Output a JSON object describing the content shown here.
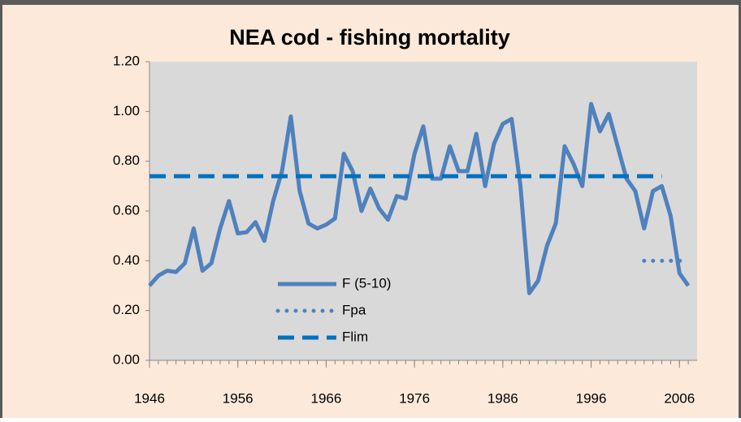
{
  "chart_data": {
    "type": "line",
    "title": "NEA cod - fishing mortality",
    "series": [
      {
        "name": "F (5-10)",
        "color": "#4f81bd",
        "style": "solid",
        "x": [
          1946,
          1947,
          1948,
          1949,
          1950,
          1951,
          1952,
          1953,
          1954,
          1955,
          1956,
          1957,
          1958,
          1959,
          1960,
          1961,
          1962,
          1963,
          1964,
          1965,
          1966,
          1967,
          1968,
          1969,
          1970,
          1971,
          1972,
          1973,
          1974,
          1975,
          1976,
          1977,
          1978,
          1979,
          1980,
          1981,
          1982,
          1983,
          1984,
          1985,
          1986,
          1987,
          1988,
          1989,
          1990,
          1991,
          1992,
          1993,
          1994,
          1995,
          1996,
          1997,
          1998,
          1999,
          2000,
          2001,
          2002,
          2003,
          2004,
          2005,
          2006,
          2007
        ],
        "values": [
          0.3,
          0.34,
          0.36,
          0.355,
          0.39,
          0.53,
          0.36,
          0.39,
          0.53,
          0.64,
          0.51,
          0.515,
          0.555,
          0.48,
          0.64,
          0.76,
          0.98,
          0.68,
          0.55,
          0.53,
          0.545,
          0.57,
          0.83,
          0.76,
          0.6,
          0.69,
          0.61,
          0.565,
          0.66,
          0.65,
          0.83,
          0.94,
          0.73,
          0.73,
          0.86,
          0.76,
          0.76,
          0.91,
          0.7,
          0.87,
          0.95,
          0.97,
          0.7,
          0.27,
          0.32,
          0.46,
          0.55,
          0.86,
          0.79,
          0.7,
          1.03,
          0.92,
          0.99,
          0.86,
          0.73,
          0.68,
          0.53,
          0.68,
          0.7,
          0.58,
          0.35,
          0.3
        ]
      },
      {
        "name": "Fpa",
        "color": "#4f81bd",
        "style": "dotted",
        "x": [
          2002,
          2007
        ],
        "values": [
          0.4,
          0.4
        ]
      },
      {
        "name": "Flim",
        "color": "#0070c0",
        "style": "dashed",
        "x": [
          1946,
          2004
        ],
        "values": [
          0.74,
          0.74
        ]
      }
    ],
    "xlim": [
      1946,
      2008
    ],
    "xticks": [
      1946,
      1956,
      1966,
      1976,
      1986,
      1996,
      2006
    ],
    "ylim": [
      0,
      1.2
    ],
    "yticks": [
      {
        "value": 0,
        "label": "0.00"
      },
      {
        "value": 0.2,
        "label": "0.20"
      },
      {
        "value": 0.4,
        "label": "0.40"
      },
      {
        "value": 0.6,
        "label": "0.60"
      },
      {
        "value": 0.8,
        "label": "0.80"
      },
      {
        "value": 1.0,
        "label": "1.00"
      },
      {
        "value": 1.2,
        "label": "1.20"
      }
    ],
    "grid": false,
    "legend": "lower center"
  }
}
